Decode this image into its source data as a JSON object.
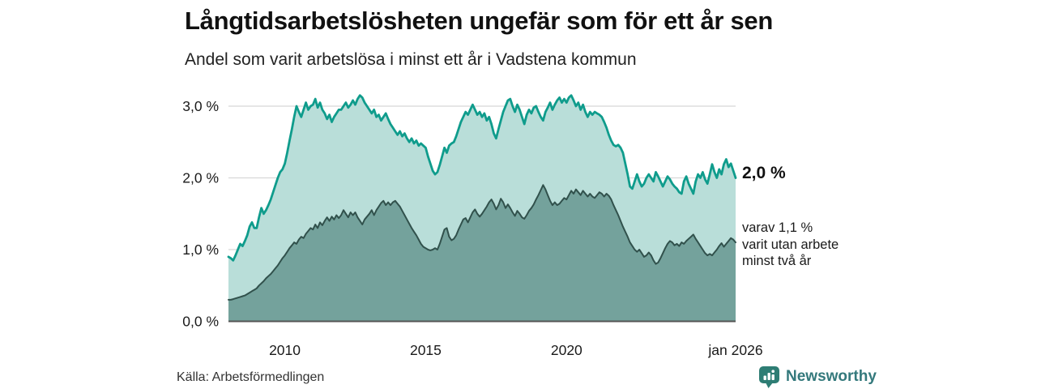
{
  "header": {
    "title": "Långtidsarbetslösheten ungefär som för ett år sen",
    "subtitle": "Andel som varit arbetslösa i minst ett år i Vadstena kommun"
  },
  "annotations": {
    "latest_total": "2,0 %",
    "sub_lines": [
      "varav 1,1 %",
      "varit utan arbete",
      "minst två år"
    ]
  },
  "footer": {
    "source": "Källa: Arbetsförmedlingen",
    "brand": "Newsworthy"
  },
  "colors": {
    "series1_fill": "#b9ded9",
    "series1_line": "#0f9c8c",
    "series2_fill": "#74a29c",
    "series2_line": "#31514c",
    "gridline": "#d8d8d8",
    "baseline": "#555555",
    "brand_teal": "#34797c",
    "logo_icon": "#2e7d74",
    "text_dark": "#111111"
  },
  "chart_data": {
    "type": "area",
    "title": "Långtidsarbetslösheten ungefär som för ett år sen",
    "subtitle": "Andel som varit arbetslösa i minst ett år i Vadstena kommun",
    "unit": "%",
    "x_interval": "monthly",
    "x_start_estimated": "2008-01",
    "x_end": "2026-01",
    "ylim": [
      0,
      3.25
    ],
    "grid": "horizontal",
    "y_ticks": [
      {
        "value": 0,
        "label": "0,0 %"
      },
      {
        "value": 1,
        "label": "1,0 %"
      },
      {
        "value": 2,
        "label": "2,0 %"
      },
      {
        "value": 3,
        "label": "3,0 %"
      }
    ],
    "x_ticks": [
      {
        "year": 2010,
        "label": "2010"
      },
      {
        "year": 2015,
        "label": "2015"
      },
      {
        "year": 2020,
        "label": "2020"
      },
      {
        "year": 2026,
        "label": "jan 2026"
      }
    ],
    "series": [
      {
        "name": "Arbetslösa minst ett år",
        "latest_value_label": "2,0 %",
        "latest_value": 2.0,
        "fill": "#b9ded9",
        "line": "#0f9c8c",
        "line_width": 2.8,
        "values": [
          0.9,
          0.88,
          0.85,
          0.92,
          1.0,
          1.08,
          1.05,
          1.12,
          1.2,
          1.32,
          1.38,
          1.3,
          1.3,
          1.45,
          1.58,
          1.5,
          1.55,
          1.62,
          1.7,
          1.8,
          1.9,
          2.0,
          2.08,
          2.12,
          2.2,
          2.35,
          2.52,
          2.68,
          2.85,
          3.0,
          2.92,
          2.85,
          2.95,
          3.05,
          2.95,
          3.0,
          3.02,
          3.1,
          2.98,
          3.05,
          2.95,
          2.9,
          2.82,
          2.88,
          2.78,
          2.85,
          2.9,
          2.95,
          2.95,
          3.0,
          3.05,
          2.98,
          3.02,
          3.08,
          3.02,
          3.1,
          3.15,
          3.12,
          3.05,
          3.0,
          2.95,
          2.9,
          2.95,
          2.85,
          2.88,
          2.8,
          2.85,
          2.9,
          2.82,
          2.75,
          2.7,
          2.65,
          2.6,
          2.65,
          2.58,
          2.62,
          2.55,
          2.5,
          2.55,
          2.48,
          2.52,
          2.45,
          2.48,
          2.45,
          2.42,
          2.3,
          2.2,
          2.1,
          2.05,
          2.08,
          2.18,
          2.3,
          2.42,
          2.35,
          2.45,
          2.48,
          2.5,
          2.58,
          2.68,
          2.78,
          2.85,
          2.92,
          2.88,
          2.95,
          3.02,
          2.95,
          2.88,
          2.92,
          2.85,
          2.9,
          2.8,
          2.85,
          2.75,
          2.62,
          2.55,
          2.68,
          2.8,
          2.92,
          3.0,
          3.08,
          3.1,
          3.0,
          2.92,
          3.02,
          2.95,
          2.85,
          2.75,
          2.88,
          2.95,
          2.9,
          2.98,
          3.0,
          2.92,
          2.85,
          2.8,
          2.92,
          2.98,
          3.05,
          2.95,
          3.02,
          3.08,
          3.12,
          3.05,
          3.1,
          3.05,
          3.12,
          3.15,
          3.08,
          3.0,
          3.05,
          2.95,
          3.02,
          2.92,
          2.85,
          2.92,
          2.88,
          2.92,
          2.9,
          2.88,
          2.85,
          2.78,
          2.7,
          2.6,
          2.52,
          2.46,
          2.44,
          2.46,
          2.42,
          2.35,
          2.2,
          2.05,
          1.88,
          1.85,
          1.95,
          2.05,
          1.95,
          1.88,
          1.92,
          2.0,
          2.05,
          2.0,
          1.95,
          2.08,
          2.02,
          1.95,
          1.88,
          1.95,
          2.02,
          1.98,
          1.92,
          1.88,
          1.85,
          1.8,
          1.78,
          1.95,
          2.02,
          1.92,
          1.85,
          1.78,
          1.95,
          2.05,
          2.0,
          2.08,
          1.98,
          1.92,
          2.05,
          2.19,
          2.08,
          2.0,
          2.12,
          2.05,
          2.19,
          2.26,
          2.15,
          2.2,
          2.1,
          2.0
        ]
      },
      {
        "name": "varav utan arbete minst två år",
        "latest_value_label": "1,1 %",
        "latest_value": 1.1,
        "fill": "#74a29c",
        "line": "#31514c",
        "line_width": 2,
        "values": [
          0.3,
          0.3,
          0.31,
          0.32,
          0.33,
          0.34,
          0.35,
          0.36,
          0.38,
          0.4,
          0.42,
          0.44,
          0.46,
          0.5,
          0.53,
          0.56,
          0.6,
          0.63,
          0.66,
          0.7,
          0.74,
          0.78,
          0.83,
          0.88,
          0.92,
          0.97,
          1.02,
          1.06,
          1.1,
          1.08,
          1.14,
          1.18,
          1.16,
          1.22,
          1.26,
          1.3,
          1.28,
          1.35,
          1.3,
          1.38,
          1.34,
          1.4,
          1.45,
          1.4,
          1.46,
          1.42,
          1.48,
          1.44,
          1.48,
          1.55,
          1.5,
          1.45,
          1.52,
          1.48,
          1.52,
          1.45,
          1.4,
          1.35,
          1.42,
          1.46,
          1.5,
          1.55,
          1.48,
          1.55,
          1.6,
          1.65,
          1.68,
          1.62,
          1.66,
          1.62,
          1.66,
          1.68,
          1.64,
          1.6,
          1.54,
          1.48,
          1.42,
          1.36,
          1.3,
          1.25,
          1.2,
          1.14,
          1.08,
          1.04,
          1.02,
          1.0,
          0.99,
          1.0,
          1.02,
          1.0,
          1.08,
          1.18,
          1.28,
          1.3,
          1.18,
          1.13,
          1.15,
          1.2,
          1.28,
          1.35,
          1.42,
          1.44,
          1.38,
          1.45,
          1.52,
          1.56,
          1.5,
          1.46,
          1.5,
          1.55,
          1.6,
          1.66,
          1.7,
          1.64,
          1.56,
          1.62,
          1.71,
          1.66,
          1.58,
          1.63,
          1.58,
          1.52,
          1.47,
          1.54,
          1.5,
          1.45,
          1.43,
          1.48,
          1.54,
          1.58,
          1.63,
          1.7,
          1.76,
          1.83,
          1.9,
          1.84,
          1.76,
          1.68,
          1.62,
          1.66,
          1.62,
          1.64,
          1.68,
          1.72,
          1.7,
          1.76,
          1.82,
          1.78,
          1.84,
          1.8,
          1.76,
          1.82,
          1.78,
          1.74,
          1.78,
          1.74,
          1.72,
          1.76,
          1.8,
          1.78,
          1.74,
          1.78,
          1.75,
          1.7,
          1.62,
          1.55,
          1.48,
          1.4,
          1.32,
          1.25,
          1.18,
          1.1,
          1.05,
          1.0,
          0.97,
          1.0,
          0.95,
          0.9,
          0.92,
          0.96,
          0.92,
          0.85,
          0.8,
          0.82,
          0.88,
          0.95,
          1.02,
          1.08,
          1.12,
          1.1,
          1.06,
          1.08,
          1.05,
          1.1,
          1.08,
          1.12,
          1.15,
          1.18,
          1.21,
          1.15,
          1.1,
          1.05,
          1.0,
          0.95,
          0.92,
          0.94,
          0.92,
          0.96,
          1.0,
          1.05,
          1.09,
          1.04,
          1.08,
          1.12,
          1.16,
          1.14,
          1.1
        ]
      }
    ]
  }
}
